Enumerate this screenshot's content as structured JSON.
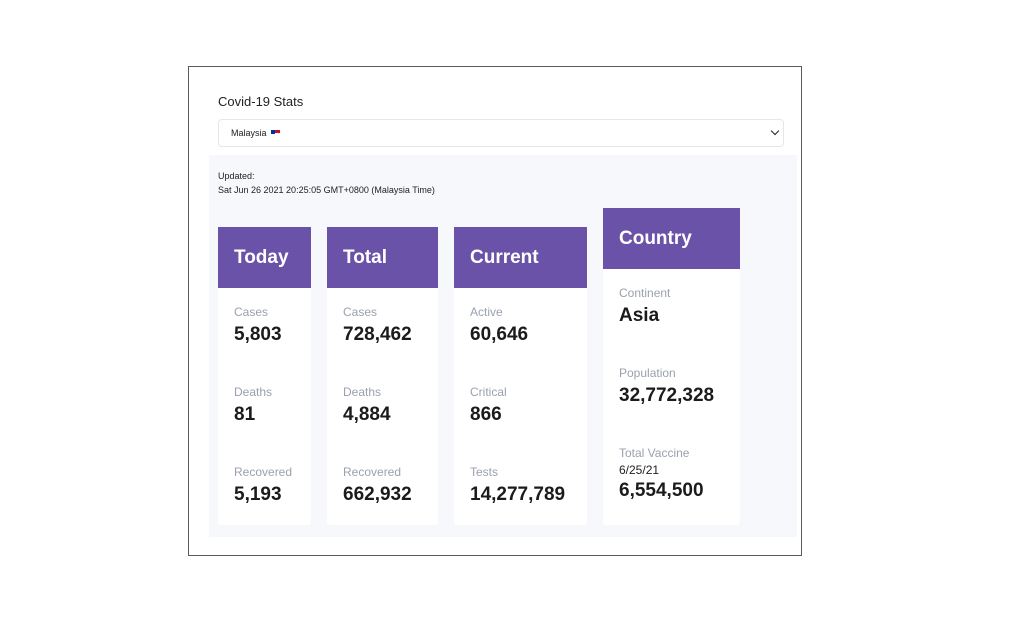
{
  "app": {
    "title": "Covid-19 Stats"
  },
  "country_select": {
    "selected": "Malaysia",
    "flag_icon": "malaysia-flag-icon"
  },
  "updated": {
    "label": "Updated:",
    "value": "Sat Jun 26 2021 20:25:05 GMT+0800 (Malaysia Time)"
  },
  "cards": {
    "today": {
      "title": "Today",
      "stats": [
        {
          "label": "Cases",
          "value": "5,803"
        },
        {
          "label": "Deaths",
          "value": "81"
        },
        {
          "label": "Recovered",
          "value": "5,193"
        }
      ]
    },
    "total": {
      "title": "Total",
      "stats": [
        {
          "label": "Cases",
          "value": "728,462"
        },
        {
          "label": "Deaths",
          "value": "4,884"
        },
        {
          "label": "Recovered",
          "value": "662,932"
        }
      ]
    },
    "current": {
      "title": "Current",
      "stats": [
        {
          "label": "Active",
          "value": "60,646"
        },
        {
          "label": "Critical",
          "value": "866"
        },
        {
          "label": "Tests",
          "value": "14,277,789"
        }
      ]
    },
    "country": {
      "title": "Country",
      "stats": [
        {
          "label": "Continent",
          "value": "Asia"
        },
        {
          "label": "Population",
          "value": "32,772,328"
        },
        {
          "label": "Total Vaccine",
          "sub": "6/25/21",
          "value": "6,554,500"
        }
      ]
    }
  },
  "colors": {
    "header_purple": "#6a52a8",
    "label_gray": "#9aa1ad",
    "panel_bg": "#f7f8fb"
  }
}
